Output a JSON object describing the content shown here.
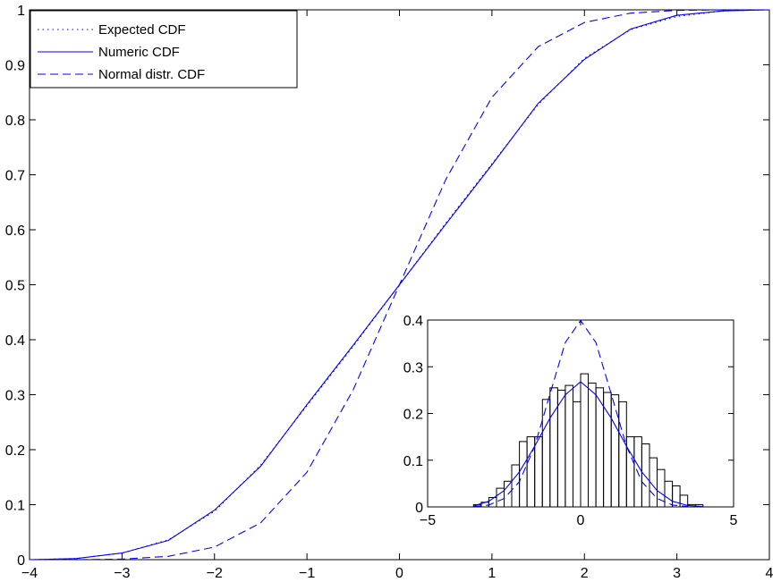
{
  "colors": {
    "series": "#0000ff",
    "axes": "#000000",
    "background": "#ffffff",
    "histogram": "#000000"
  },
  "chart_data": [
    {
      "type": "line",
      "title": "",
      "xlabel": "",
      "ylabel": "",
      "xlim": [
        -4,
        4
      ],
      "ylim": [
        0,
        1
      ],
      "xticks": [
        -4,
        -3,
        -2,
        -1,
        0,
        1,
        2,
        3,
        4
      ],
      "yticks": [
        0,
        0.1,
        0.2,
        0.3,
        0.4,
        0.5,
        0.6,
        0.7,
        0.8,
        0.9,
        1
      ],
      "xtick_labels": [
        "−4",
        "−3",
        "−2",
        "−1",
        "0",
        "1",
        "2",
        "3",
        "4"
      ],
      "ytick_labels": [
        "0",
        "0.1",
        "0.2",
        "0.3",
        "0.4",
        "0.5",
        "0.6",
        "0.7",
        "0.8",
        "0.9",
        "1"
      ],
      "grid": false,
      "legend_position": "top-left",
      "series": [
        {
          "name": "Expected CDF",
          "style": "dotted",
          "x": [
            -4,
            -3.5,
            -3,
            -2.5,
            -2,
            -1.5,
            -1,
            -0.5,
            0,
            0.5,
            1,
            1.5,
            2,
            2.5,
            3,
            3.5,
            4
          ],
          "y": [
            0,
            0.002,
            0.012,
            0.036,
            0.088,
            0.172,
            0.28,
            0.388,
            0.5,
            0.612,
            0.72,
            0.828,
            0.912,
            0.964,
            0.988,
            0.998,
            1
          ]
        },
        {
          "name": "Numeric CDF",
          "style": "solid",
          "x": [
            -4,
            -3.5,
            -3,
            -2.5,
            -2,
            -1.5,
            -1,
            -0.5,
            0,
            0.5,
            1,
            1.5,
            2,
            2.5,
            3,
            3.5,
            4
          ],
          "y": [
            0,
            0.002,
            0.012,
            0.035,
            0.09,
            0.17,
            0.282,
            0.39,
            0.5,
            0.61,
            0.718,
            0.83,
            0.91,
            0.965,
            0.99,
            0.998,
            1
          ]
        },
        {
          "name": "Normal distr. CDF",
          "style": "dashed",
          "x": [
            -4,
            -3.5,
            -3,
            -2.5,
            -2,
            -1.5,
            -1,
            -0.5,
            0,
            0.5,
            1,
            1.5,
            2,
            2.5,
            3,
            3.5,
            4
          ],
          "y": [
            0,
            0,
            0.001,
            0.006,
            0.023,
            0.067,
            0.159,
            0.309,
            0.5,
            0.691,
            0.841,
            0.933,
            0.977,
            0.994,
            0.999,
            1,
            1
          ]
        }
      ]
    },
    {
      "type": "line",
      "title": "",
      "xlim": [
        -5,
        5
      ],
      "ylim": [
        0,
        0.4
      ],
      "xticks": [
        -5,
        0,
        5
      ],
      "yticks": [
        0,
        0.1,
        0.2,
        0.3,
        0.4
      ],
      "xtick_labels": [
        "−5",
        "0",
        "5"
      ],
      "ytick_labels": [
        "0",
        "0.1",
        "0.2",
        "0.3",
        "0.4"
      ],
      "grid": false,
      "histogram": {
        "bin_edges": [
          -3.5,
          -3.25,
          -3.0,
          -2.75,
          -2.5,
          -2.25,
          -2.0,
          -1.75,
          -1.5,
          -1.25,
          -1.0,
          -0.75,
          -0.5,
          -0.25,
          0.0,
          0.25,
          0.5,
          0.75,
          1.0,
          1.25,
          1.5,
          1.75,
          2.0,
          2.25,
          2.5,
          2.75,
          3.0,
          3.25,
          3.5,
          3.75,
          4.0
        ],
        "counts": [
          0.005,
          0.01,
          0.02,
          0.04,
          0.055,
          0.09,
          0.14,
          0.15,
          0.15,
          0.23,
          0.255,
          0.25,
          0.26,
          0.225,
          0.285,
          0.265,
          0.255,
          0.245,
          0.24,
          0.225,
          0.15,
          0.15,
          0.135,
          0.105,
          0.08,
          0.055,
          0.045,
          0.025,
          0.005,
          0.005
        ]
      },
      "series": [
        {
          "name": "",
          "style": "solid",
          "x": [
            -3.5,
            -3,
            -2.5,
            -2,
            -1.5,
            -1,
            -0.5,
            0,
            0.5,
            1,
            1.5,
            2,
            2.5,
            3,
            3.5,
            4
          ],
          "y": [
            0.002,
            0.012,
            0.035,
            0.075,
            0.13,
            0.19,
            0.24,
            0.268,
            0.24,
            0.19,
            0.13,
            0.075,
            0.035,
            0.012,
            0.003,
            0.001
          ]
        },
        {
          "name": "",
          "style": "dashed",
          "x": [
            -3.5,
            -3,
            -2.5,
            -2,
            -1.5,
            -1,
            -0.5,
            0,
            0.5,
            1,
            1.5,
            2,
            2.5,
            3,
            3.5
          ],
          "y": [
            0.001,
            0.004,
            0.018,
            0.054,
            0.13,
            0.242,
            0.352,
            0.399,
            0.352,
            0.242,
            0.13,
            0.054,
            0.018,
            0.004,
            0.001
          ]
        }
      ]
    }
  ]
}
